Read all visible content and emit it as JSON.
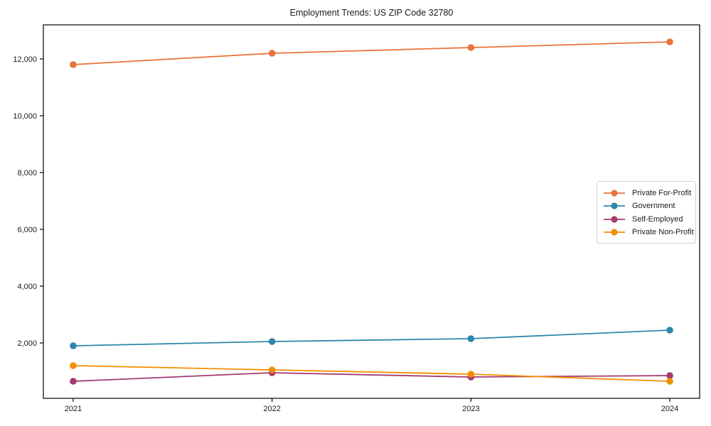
{
  "chart_data": {
    "type": "line",
    "title": "Employment Trends: US ZIP Code 32780",
    "xlabel": "",
    "ylabel": "",
    "categories": [
      "2021",
      "2022",
      "2023",
      "2024"
    ],
    "series": [
      {
        "name": "Private For-Profit",
        "color": "#e8743b",
        "values": [
          11800,
          12200,
          12400,
          12600
        ]
      },
      {
        "name": "Government",
        "color": "#2e86ab",
        "values": [
          1900,
          2050,
          2150,
          2450
        ]
      },
      {
        "name": "Self-Employed",
        "color": "#a23b72",
        "values": [
          650,
          950,
          800,
          850
        ]
      },
      {
        "name": "Private Non-Profit",
        "color": "#f18f01",
        "values": [
          1200,
          1050,
          900,
          650
        ]
      }
    ],
    "yticks": {
      "values": [
        2000,
        4000,
        6000,
        8000,
        10000,
        12000
      ],
      "labels": [
        "2,000",
        "4,000",
        "6,000",
        "8,000",
        "10,000",
        "12,000"
      ]
    },
    "ylim": [
      50,
      13200
    ],
    "xlim": [
      -0.15,
      3.15
    ],
    "grid": false,
    "legend_position": "center-right",
    "marker": "circle",
    "axis_color": "#000000",
    "tick_label_color": "#1a1a1a"
  }
}
